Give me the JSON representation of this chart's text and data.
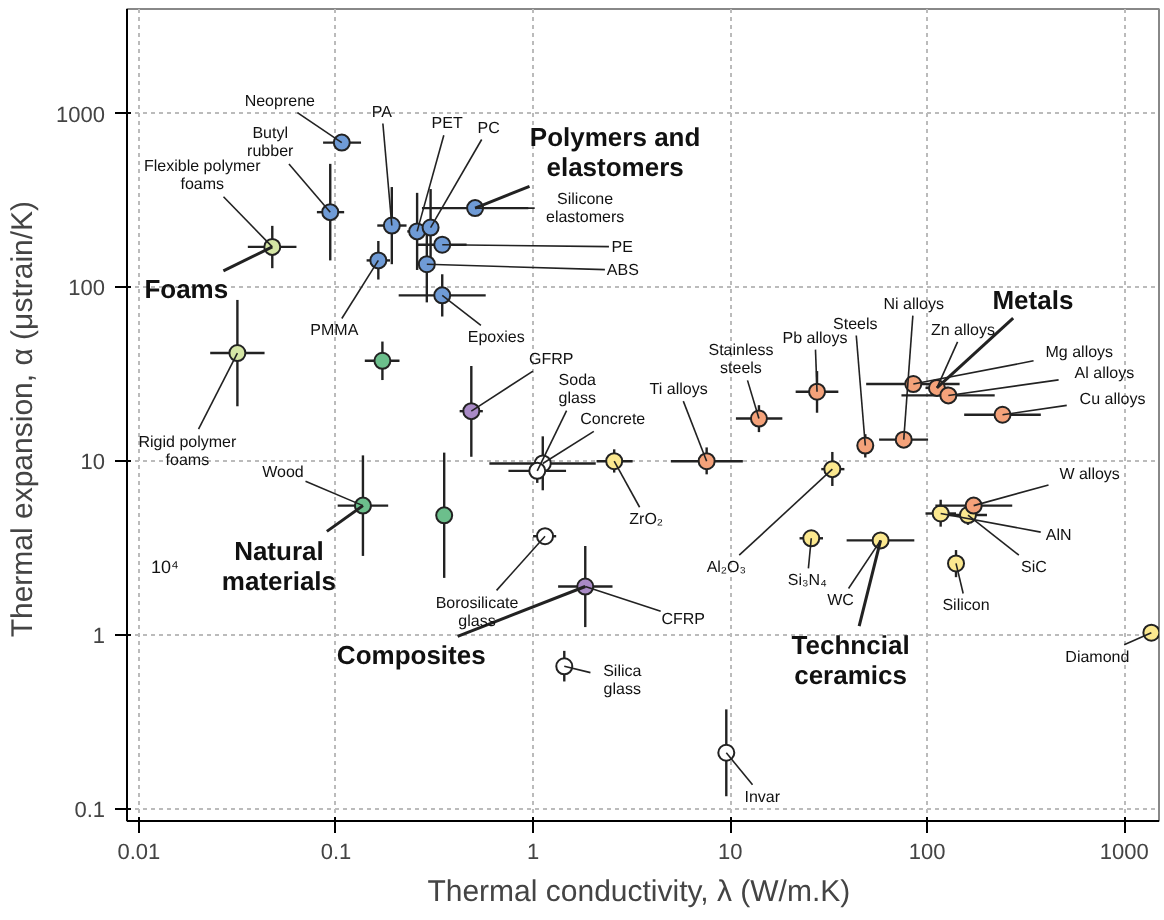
{
  "chart_data": {
    "type": "scatter",
    "xlabel": "Thermal conductivity, λ  (W/m.K)",
    "ylabel": "Thermal expansion, α  (μstrain/K)",
    "log": "xy",
    "grid": true,
    "xlim": [
      0.0087,
      1500
    ],
    "ylim": [
      0.085,
      4000
    ],
    "xticks": [
      0.01,
      0.1,
      1,
      10,
      100,
      1000
    ],
    "yticks": [
      0.1,
      1,
      10,
      100,
      1000
    ],
    "series": [
      {
        "color": "#6f9bd6",
        "x": [
          0.107,
          0.0935,
          0.192,
          0.258,
          0.302,
          0.508,
          0.346,
          0.289,
          0.346,
          0.164
        ],
        "values": [
          681,
          271,
          227,
          210,
          221,
          286,
          176,
          136,
          90,
          143
        ],
        "xerrors": [
          [
            0.086,
            0.134
          ],
          [
            0.08,
            0.11
          ],
          [
            0.162,
            0.228
          ],
          [
            0.23,
            0.29
          ],
          [
            0.276,
            0.33
          ],
          [
            0.273,
            0.946
          ],
          [
            0.26,
            0.46
          ],
          [
            0.264,
            0.316
          ],
          [
            0.208,
            0.575
          ],
          [
            0.143,
            0.188
          ]
        ],
        "errors": [
          [
            615,
            754
          ],
          [
            143,
            514
          ],
          [
            136,
            378
          ],
          [
            126,
            350
          ],
          [
            133,
            368
          ],
          [
            265,
            309
          ],
          [
            159,
            195
          ],
          [
            82,
            226
          ],
          [
            68,
            119
          ],
          [
            111,
            185
          ]
        ]
      },
      {
        "color": "#d5e6a5",
        "x": [
          0.0475,
          0.0316
        ],
        "values": [
          171,
          41.9
        ],
        "xerrors": [
          [
            0.0357,
            0.063
          ],
          [
            0.023,
            0.0434
          ]
        ],
        "errors": [
          [
            129,
            226
          ],
          [
            20.7,
            84.7
          ]
        ]
      },
      {
        "color": "#6cbf8c",
        "x": [
          0.172,
          0.137,
          0.354
        ],
        "values": [
          37.8,
          5.55,
          4.88
        ],
        "xerrors": [
          [
            0.14,
            0.21
          ],
          [
            0.102,
            0.184
          ],
          [
            0.324,
            0.387
          ]
        ],
        "errors": [
          [
            29.3,
            48.8
          ],
          [
            2.85,
            10.8
          ],
          [
            2.13,
            11.2
          ]
        ]
      },
      {
        "color": "#a98ac6",
        "x": [
          0.486,
          1.84
        ],
        "values": [
          19.4,
          1.9
        ],
        "xerrors": [
          [
            0.424,
            0.556
          ],
          [
            1.34,
            2.53
          ]
        ],
        "errors": [
          [
            10.6,
            35.3
          ],
          [
            1.11,
            3.25
          ]
        ]
      },
      {
        "color": "#ffffff",
        "x": [
          1.12,
          1.05,
          1.15,
          1.44,
          9.56
        ],
        "values": [
          9.7,
          8.8,
          3.7,
          0.66,
          0.21
        ],
        "xerrors": [
          [
            0.6,
            2.08
          ],
          [
            0.75,
            1.47
          ],
          [
            1.0,
            1.31
          ],
          [
            1.36,
            1.52
          ],
          [
            8.9,
            10.2
          ]
        ],
        "errors": [
          [
            6.8,
            13.9
          ],
          [
            7.5,
            10.3
          ],
          [
            3.34,
            4.1
          ],
          [
            0.54,
            0.81
          ],
          [
            0.118,
            0.373
          ]
        ]
      },
      {
        "color": "#fbe88f",
        "x": [
          2.58,
          33,
          25.8,
          58,
          140,
          1372,
          117,
          161
        ],
        "values": [
          10,
          9.0,
          3.6,
          3.5,
          2.58,
          1.03,
          5.0,
          4.9
        ],
        "xerrors": [
          [
            2.1,
            3.2
          ],
          [
            29,
            38
          ],
          [
            22.5,
            29.6
          ],
          [
            39,
            86
          ],
          [
            132,
            149
          ],
          [
            1280,
            1460
          ],
          [
            98,
            140
          ],
          [
            128,
            201
          ]
        ],
        "errors": [
          [
            8.6,
            11.7
          ],
          [
            7.2,
            11.3
          ],
          [
            3.42,
            3.79
          ],
          [
            3.32,
            3.68
          ],
          [
            2.15,
            3.08
          ],
          [
            0.93,
            1.14
          ],
          [
            4.2,
            6.0
          ],
          [
            4.3,
            5.6
          ]
        ]
      },
      {
        "color": "#f4a27a",
        "x": [
          7.6,
          14,
          27.6,
          48.5,
          76,
          112,
          85,
          128,
          241,
          172
        ],
        "values": [
          10,
          17.6,
          25.1,
          12.3,
          13.3,
          26.4,
          27.8,
          23.9,
          18.5,
          5.55
        ],
        "xerrors": [
          [
            5.0,
            11.6
          ],
          [
            10.7,
            18.4
          ],
          [
            21.5,
            35.4
          ],
          [
            44,
            53
          ],
          [
            57,
            101
          ],
          [
            98,
            128
          ],
          [
            49,
            146
          ],
          [
            74,
            220
          ],
          [
            154,
            377
          ],
          [
            110,
            270
          ]
        ],
        "errors": [
          [
            8.4,
            12
          ],
          [
            14.7,
            21
          ],
          [
            19,
            33
          ],
          [
            10.5,
            14.3
          ],
          [
            12,
            14.7
          ],
          [
            23.9,
            29.2
          ],
          [
            25.8,
            30
          ],
          [
            22.1,
            25.8
          ],
          [
            17.6,
            19.5
          ],
          [
            5.0,
            6.1
          ]
        ]
      }
    ],
    "annotations": [
      {
        "text": "Polymers and\nelastomers",
        "x": 0.508,
        "y": 286
      },
      {
        "text": "Foams",
        "x": 0.0475,
        "y": 171
      },
      {
        "text": "Natural\nmaterials",
        "x": 0.137,
        "y": 5.55
      },
      {
        "text": "Composites",
        "x": 1.84,
        "y": 1.9
      },
      {
        "text": "Metals",
        "x": 112,
        "y": 26.4
      },
      {
        "text": "Techncial\nceramics",
        "x": 58,
        "y": 3.5
      },
      {
        "text": "Neoprene",
        "x": 0.107,
        "y": 681
      },
      {
        "text": "Butyl\nrubber",
        "x": 0.0935,
        "y": 271
      },
      {
        "text": "Flexible polymer\nfoams",
        "x": 0.0475,
        "y": 171
      },
      {
        "text": "PA",
        "x": 0.192,
        "y": 227
      },
      {
        "text": "PET",
        "x": 0.258,
        "y": 210
      },
      {
        "text": "PC",
        "x": 0.302,
        "y": 221
      },
      {
        "text": "Silicone\nelastomers",
        "x": 0.508,
        "y": 286
      },
      {
        "text": "PE",
        "x": 0.346,
        "y": 176
      },
      {
        "text": "ABS",
        "x": 0.289,
        "y": 136
      },
      {
        "text": "PMMA",
        "x": 0.164,
        "y": 143
      },
      {
        "text": "Epoxies",
        "x": 0.346,
        "y": 90
      },
      {
        "text": "Rigid polymer\nfoams",
        "x": 0.0316,
        "y": 41.9
      },
      {
        "text": "Wood",
        "x": 0.137,
        "y": 5.55
      },
      {
        "text": "GFRP",
        "x": 0.486,
        "y": 19.4
      },
      {
        "text": "Soda\nglass",
        "x": 1.05,
        "y": 8.8
      },
      {
        "text": "Concrete",
        "x": 1.12,
        "y": 9.7
      },
      {
        "text": "ZrO₂",
        "x": 2.58,
        "y": 10
      },
      {
        "text": "Borosilicate\nglass",
        "x": 1.15,
        "y": 3.7
      },
      {
        "text": "CFRP",
        "x": 1.84,
        "y": 1.9
      },
      {
        "text": "Silica\nglass",
        "x": 1.44,
        "y": 0.66
      },
      {
        "text": "Invar",
        "x": 9.56,
        "y": 0.21
      },
      {
        "text": "Ti alloys",
        "x": 7.6,
        "y": 10
      },
      {
        "text": "Stainless\nsteels",
        "x": 14,
        "y": 17.6
      },
      {
        "text": "Pb alloys",
        "x": 27.6,
        "y": 25.1
      },
      {
        "text": "Steels",
        "x": 48.5,
        "y": 12.3
      },
      {
        "text": "Ni alloys",
        "x": 76,
        "y": 13.3
      },
      {
        "text": "Zn alloys",
        "x": 112,
        "y": 26.4
      },
      {
        "text": "Mg alloys",
        "x": 85,
        "y": 27.8
      },
      {
        "text": "Al alloys",
        "x": 128,
        "y": 23.9
      },
      {
        "text": "Cu alloys",
        "x": 241,
        "y": 18.5
      },
      {
        "text": "W alloys",
        "x": 172,
        "y": 5.55
      },
      {
        "text": "AlN",
        "x": 117,
        "y": 5.0
      },
      {
        "text": "SiC",
        "x": 161,
        "y": 4.9
      },
      {
        "text": "Al₂O₃",
        "x": 33,
        "y": 9.0
      },
      {
        "text": "Si₃N₄",
        "x": 25.8,
        "y": 3.6
      },
      {
        "text": "WC",
        "x": 58,
        "y": 3.5
      },
      {
        "text": "Silicon",
        "x": 140,
        "y": 2.58
      },
      {
        "text": "Diamond",
        "x": 1372,
        "y": 1.03
      },
      "10⁴"
    ]
  }
}
